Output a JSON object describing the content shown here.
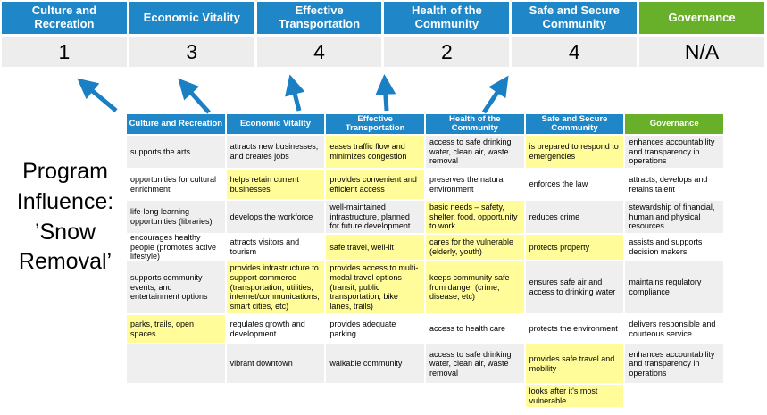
{
  "title": "Program Influence: ’Snow Removal’",
  "colors": {
    "blue": "#1F87C8",
    "green": "#69B02A",
    "yellow": "#FFFC99",
    "rowalt": "#EFEFEF",
    "scorebg": "#EDEDED",
    "arrow": "#1B7FC4"
  },
  "pillars": [
    {
      "name": "Culture and Recreation",
      "score": "1",
      "accent": "blue"
    },
    {
      "name": "Economic Vitality",
      "score": "3",
      "accent": "blue"
    },
    {
      "name": "Effective Transportation",
      "score": "4",
      "accent": "blue"
    },
    {
      "name": "Health of the Community",
      "score": "2",
      "accent": "blue"
    },
    {
      "name": "Safe and Secure Community",
      "score": "4",
      "accent": "blue"
    },
    {
      "name": "Governance",
      "score": "N/A",
      "accent": "green"
    }
  ],
  "matrix": {
    "headers": [
      "Culture and Recreation",
      "Economic Vitality",
      "Effective Transportation",
      "Health of the Community",
      "Safe and Secure Community",
      "Governance"
    ],
    "rows": [
      [
        {
          "t": "supports the arts",
          "h": false
        },
        {
          "t": "attracts new businesses, and creates jobs",
          "h": false
        },
        {
          "t": "eases traffic flow and minimizes congestion",
          "h": true
        },
        {
          "t": "access to safe drinking water, clean air, waste removal",
          "h": false
        },
        {
          "t": "is prepared to respond to emergencies",
          "h": true
        },
        {
          "t": "enhances accountability and transparency in operations",
          "h": false
        }
      ],
      [
        {
          "t": "opportunities for cultural enrichment",
          "h": false
        },
        {
          "t": "helps retain current businesses",
          "h": true
        },
        {
          "t": "provides convenient and efficient access",
          "h": true
        },
        {
          "t": "preserves the natural environment",
          "h": false
        },
        {
          "t": "enforces the law",
          "h": false
        },
        {
          "t": "attracts, develops and retains talent",
          "h": false
        }
      ],
      [
        {
          "t": "life-long learning opportunities (libraries)",
          "h": false
        },
        {
          "t": "develops the workforce",
          "h": false
        },
        {
          "t": "well-maintained infrastructure, planned for future development",
          "h": false
        },
        {
          "t": "basic needs – safety, shelter, food, opportunity to work",
          "h": true
        },
        {
          "t": "reduces crime",
          "h": false
        },
        {
          "t": "stewardship of financial, human and physical resources",
          "h": false
        }
      ],
      [
        {
          "t": "encourages healthy people (promotes active lifestyle)",
          "h": false
        },
        {
          "t": "attracts visitors and tourism",
          "h": false
        },
        {
          "t": "safe travel, well-lit",
          "h": true
        },
        {
          "t": "cares for the vulnerable (elderly, youth)",
          "h": true
        },
        {
          "t": "protects property",
          "h": true
        },
        {
          "t": "assists and supports decision makers",
          "h": false
        }
      ],
      [
        {
          "t": "supports community events, and entertainment options",
          "h": false
        },
        {
          "t": "provides infrastructure to support commerce (transportation, utilities, internet/communications, smart cities, etc)",
          "h": true
        },
        {
          "t": "provides access to multi-modal travel options (transit, public transportation, bike lanes, trails)",
          "h": true
        },
        {
          "t": "keeps community safe from danger (crime, disease, etc)",
          "h": true
        },
        {
          "t": "ensures safe air and access to drinking water",
          "h": false
        },
        {
          "t": "maintains regulatory compliance",
          "h": false
        }
      ],
      [
        {
          "t": "parks, trails, open spaces",
          "h": true
        },
        {
          "t": "regulates growth and development",
          "h": false
        },
        {
          "t": "provides adequate parking",
          "h": false
        },
        {
          "t": "access to health care",
          "h": false
        },
        {
          "t": "protects the environment",
          "h": false
        },
        {
          "t": "delivers responsible and courteous service",
          "h": false
        }
      ],
      [
        {
          "t": "",
          "h": false
        },
        {
          "t": "vibrant downtown",
          "h": false
        },
        {
          "t": "walkable community",
          "h": false
        },
        {
          "t": "access to safe drinking water, clean air, waste removal",
          "h": false
        },
        {
          "t": "provides safe travel and mobility",
          "h": true
        },
        {
          "t": "enhances accountability and transparency in operations",
          "h": false
        }
      ],
      [
        {
          "t": "",
          "h": false
        },
        {
          "t": "",
          "h": false
        },
        {
          "t": "",
          "h": false
        },
        {
          "t": "",
          "h": false
        },
        {
          "t": "looks after it's most vulnerable",
          "h": true
        },
        {
          "t": "",
          "h": false
        }
      ]
    ]
  }
}
